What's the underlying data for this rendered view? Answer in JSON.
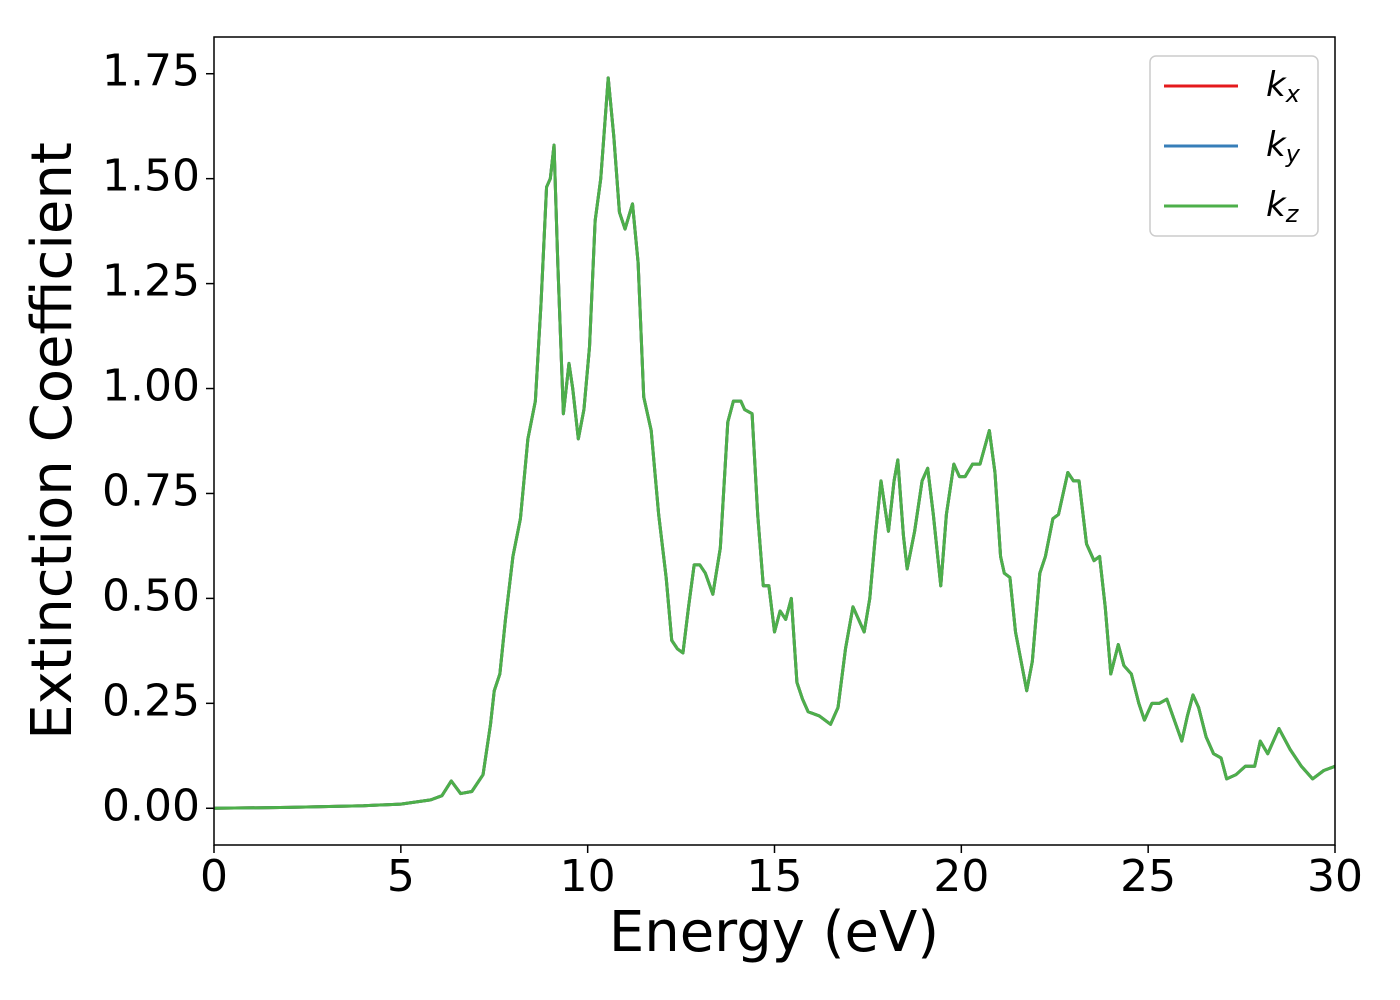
{
  "chart_data": {
    "type": "line",
    "xlabel": "Energy (eV)",
    "ylabel": "Extinction Coefficient",
    "xlim": [
      0,
      30
    ],
    "ylim": [
      -0.0875,
      1.8375
    ],
    "xticks": [
      0,
      5,
      10,
      15,
      20,
      25,
      30
    ],
    "yticks": [
      {
        "value": 0,
        "label": "0.00"
      },
      {
        "value": 0.25,
        "label": "0.25"
      },
      {
        "value": 0.5,
        "label": "0.50"
      },
      {
        "value": 0.75,
        "label": "0.75"
      },
      {
        "value": 1,
        "label": "1.00"
      },
      {
        "value": 1.25,
        "label": "1.25"
      },
      {
        "value": 1.5,
        "label": "1.50"
      },
      {
        "value": 1.75,
        "label": "1.75"
      }
    ],
    "legend": "upper right",
    "x": [
      0,
      2,
      4,
      5,
      5.8,
      6.1,
      6.35,
      6.6,
      6.9,
      7.2,
      7.4,
      7.5,
      7.65,
      7.8,
      8.0,
      8.2,
      8.4,
      8.6,
      8.75,
      8.9,
      9.0,
      9.1,
      9.2,
      9.35,
      9.5,
      9.6,
      9.75,
      9.9,
      10.05,
      10.2,
      10.35,
      10.55,
      10.7,
      10.85,
      11.0,
      11.2,
      11.35,
      11.5,
      11.7,
      11.9,
      12.1,
      12.25,
      12.4,
      12.55,
      12.7,
      12.85,
      13.0,
      13.15,
      13.35,
      13.55,
      13.75,
      13.9,
      14.1,
      14.2,
      14.4,
      14.55,
      14.7,
      14.85,
      15.0,
      15.15,
      15.3,
      15.45,
      15.6,
      15.75,
      15.9,
      16.2,
      16.5,
      16.7,
      16.9,
      17.1,
      17.25,
      17.4,
      17.55,
      17.7,
      17.85,
      18.05,
      18.2,
      18.3,
      18.45,
      18.55,
      18.75,
      18.95,
      19.1,
      19.25,
      19.45,
      19.6,
      19.8,
      19.95,
      20.1,
      20.3,
      20.5,
      20.75,
      20.9,
      21.05,
      21.15,
      21.3,
      21.45,
      21.6,
      21.75,
      21.9,
      22.1,
      22.25,
      22.45,
      22.6,
      22.85,
      23.0,
      23.15,
      23.35,
      23.55,
      23.7,
      23.85,
      24.0,
      24.2,
      24.35,
      24.55,
      24.75,
      24.9,
      25.1,
      25.3,
      25.5,
      25.7,
      25.9,
      26.05,
      26.2,
      26.35,
      26.55,
      26.75,
      26.95,
      27.1,
      27.35,
      27.6,
      27.85,
      28.0,
      28.2,
      28.5,
      28.8,
      29.1,
      29.4,
      29.7,
      30
    ],
    "series": [
      {
        "name": "kx",
        "color": "#e41a1c",
        "values": [
          0,
          0.002,
          0.006,
          0.01,
          0.02,
          0.03,
          0.065,
          0.035,
          0.04,
          0.08,
          0.2,
          0.28,
          0.32,
          0.45,
          0.6,
          0.69,
          0.88,
          0.97,
          1.2,
          1.48,
          1.5,
          1.58,
          1.3,
          0.94,
          1.06,
          1.0,
          0.88,
          0.95,
          1.1,
          1.4,
          1.5,
          1.74,
          1.6,
          1.42,
          1.38,
          1.44,
          1.3,
          0.98,
          0.9,
          0.7,
          0.55,
          0.4,
          0.38,
          0.37,
          0.48,
          0.58,
          0.58,
          0.56,
          0.51,
          0.62,
          0.92,
          0.97,
          0.97,
          0.95,
          0.94,
          0.7,
          0.53,
          0.53,
          0.42,
          0.47,
          0.45,
          0.5,
          0.3,
          0.26,
          0.23,
          0.22,
          0.2,
          0.24,
          0.38,
          0.48,
          0.45,
          0.42,
          0.5,
          0.65,
          0.78,
          0.66,
          0.78,
          0.83,
          0.65,
          0.57,
          0.66,
          0.78,
          0.81,
          0.7,
          0.53,
          0.7,
          0.82,
          0.79,
          0.79,
          0.82,
          0.82,
          0.9,
          0.8,
          0.6,
          0.56,
          0.55,
          0.42,
          0.35,
          0.28,
          0.35,
          0.56,
          0.6,
          0.69,
          0.7,
          0.8,
          0.78,
          0.78,
          0.63,
          0.59,
          0.6,
          0.48,
          0.32,
          0.39,
          0.34,
          0.32,
          0.25,
          0.21,
          0.25,
          0.25,
          0.26,
          0.21,
          0.16,
          0.22,
          0.27,
          0.24,
          0.17,
          0.13,
          0.12,
          0.07,
          0.08,
          0.1,
          0.1,
          0.16,
          0.13,
          0.19,
          0.14,
          0.1,
          0.07,
          0.09,
          0.1
        ]
      },
      {
        "name": "ky",
        "color": "#377eb8",
        "values": [
          0,
          0.002,
          0.006,
          0.01,
          0.02,
          0.03,
          0.065,
          0.035,
          0.04,
          0.08,
          0.2,
          0.28,
          0.32,
          0.45,
          0.6,
          0.69,
          0.88,
          0.97,
          1.2,
          1.48,
          1.5,
          1.58,
          1.3,
          0.94,
          1.06,
          1.0,
          0.88,
          0.95,
          1.1,
          1.4,
          1.5,
          1.74,
          1.6,
          1.42,
          1.38,
          1.44,
          1.3,
          0.98,
          0.9,
          0.7,
          0.55,
          0.4,
          0.38,
          0.37,
          0.48,
          0.58,
          0.58,
          0.56,
          0.51,
          0.62,
          0.92,
          0.97,
          0.97,
          0.95,
          0.94,
          0.7,
          0.53,
          0.53,
          0.42,
          0.47,
          0.45,
          0.5,
          0.3,
          0.26,
          0.23,
          0.22,
          0.2,
          0.24,
          0.38,
          0.48,
          0.45,
          0.42,
          0.5,
          0.65,
          0.78,
          0.66,
          0.78,
          0.83,
          0.65,
          0.57,
          0.66,
          0.78,
          0.81,
          0.7,
          0.53,
          0.7,
          0.82,
          0.79,
          0.79,
          0.82,
          0.82,
          0.9,
          0.8,
          0.6,
          0.56,
          0.55,
          0.42,
          0.35,
          0.28,
          0.35,
          0.56,
          0.6,
          0.69,
          0.7,
          0.8,
          0.78,
          0.78,
          0.63,
          0.59,
          0.6,
          0.48,
          0.32,
          0.39,
          0.34,
          0.32,
          0.25,
          0.21,
          0.25,
          0.25,
          0.26,
          0.21,
          0.16,
          0.22,
          0.27,
          0.24,
          0.17,
          0.13,
          0.12,
          0.07,
          0.08,
          0.1,
          0.1,
          0.16,
          0.13,
          0.19,
          0.14,
          0.1,
          0.07,
          0.09,
          0.1
        ]
      },
      {
        "name": "kz",
        "color": "#4daf4a",
        "values": [
          0,
          0.002,
          0.006,
          0.01,
          0.02,
          0.03,
          0.065,
          0.035,
          0.04,
          0.08,
          0.2,
          0.28,
          0.32,
          0.45,
          0.6,
          0.69,
          0.88,
          0.97,
          1.2,
          1.48,
          1.5,
          1.58,
          1.3,
          0.94,
          1.06,
          1.0,
          0.88,
          0.95,
          1.1,
          1.4,
          1.5,
          1.74,
          1.6,
          1.42,
          1.38,
          1.44,
          1.3,
          0.98,
          0.9,
          0.7,
          0.55,
          0.4,
          0.38,
          0.37,
          0.48,
          0.58,
          0.58,
          0.56,
          0.51,
          0.62,
          0.92,
          0.97,
          0.97,
          0.95,
          0.94,
          0.7,
          0.53,
          0.53,
          0.42,
          0.47,
          0.45,
          0.5,
          0.3,
          0.26,
          0.23,
          0.22,
          0.2,
          0.24,
          0.38,
          0.48,
          0.45,
          0.42,
          0.5,
          0.65,
          0.78,
          0.66,
          0.78,
          0.83,
          0.65,
          0.57,
          0.66,
          0.78,
          0.81,
          0.7,
          0.53,
          0.7,
          0.82,
          0.79,
          0.79,
          0.82,
          0.82,
          0.9,
          0.8,
          0.6,
          0.56,
          0.55,
          0.42,
          0.35,
          0.28,
          0.35,
          0.56,
          0.6,
          0.69,
          0.7,
          0.8,
          0.78,
          0.78,
          0.63,
          0.59,
          0.6,
          0.48,
          0.32,
          0.39,
          0.34,
          0.32,
          0.25,
          0.21,
          0.25,
          0.25,
          0.26,
          0.21,
          0.16,
          0.22,
          0.27,
          0.24,
          0.17,
          0.13,
          0.12,
          0.07,
          0.08,
          0.1,
          0.1,
          0.16,
          0.13,
          0.19,
          0.14,
          0.1,
          0.07,
          0.09,
          0.1
        ]
      }
    ]
  }
}
